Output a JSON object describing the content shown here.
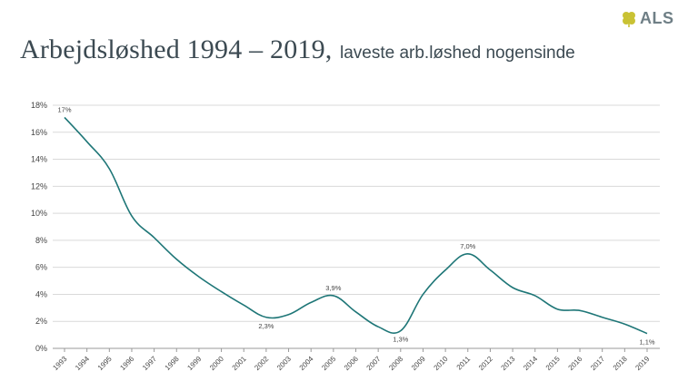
{
  "header": {
    "title": "Arbejdsløshed 1994 – 2019,",
    "subtitle": "laveste arb.løshed nogensinde",
    "logo_text": "ALS"
  },
  "colors": {
    "line": "#1e7677",
    "grid": "#d9d9d9",
    "axis": "#999999",
    "logo_leaf": "#c9c234"
  },
  "chart_data": {
    "type": "line",
    "title": "Arbejdsløshed 1994 – 2019",
    "xlabel": "",
    "ylabel": "",
    "ylim": [
      0,
      18
    ],
    "yticks": [
      0,
      2,
      4,
      6,
      8,
      10,
      12,
      14,
      16,
      18
    ],
    "ytick_labels": [
      "0%",
      "2%",
      "4%",
      "6%",
      "8%",
      "10%",
      "12%",
      "14%",
      "16%",
      "18%"
    ],
    "categories": [
      "1993",
      "1994",
      "1995",
      "1996",
      "1997",
      "1998",
      "1999",
      "2000",
      "2001",
      "2002",
      "2003",
      "2004",
      "2005",
      "2006",
      "2007",
      "2008",
      "2009",
      "2010",
      "2011",
      "2012",
      "2013",
      "2014",
      "2015",
      "2016",
      "2017",
      "2018",
      "2019"
    ],
    "series": [
      {
        "name": "Arbejdsløshed",
        "values": [
          17.1,
          15.3,
          13.3,
          9.8,
          8.2,
          6.6,
          5.3,
          4.2,
          3.2,
          2.3,
          2.5,
          3.4,
          3.9,
          2.7,
          1.6,
          1.3,
          4.0,
          5.8,
          7.0,
          5.8,
          4.5,
          3.9,
          2.9,
          2.8,
          2.3,
          1.8,
          1.1
        ]
      }
    ],
    "data_labels": [
      {
        "index": 0,
        "text": "17%"
      },
      {
        "index": 9,
        "text": "2,3%"
      },
      {
        "index": 12,
        "text": "3,9%"
      },
      {
        "index": 15,
        "text": "1,3%"
      },
      {
        "index": 18,
        "text": "7,0%"
      },
      {
        "index": 26,
        "text": "1,1%"
      }
    ],
    "grid": true
  }
}
